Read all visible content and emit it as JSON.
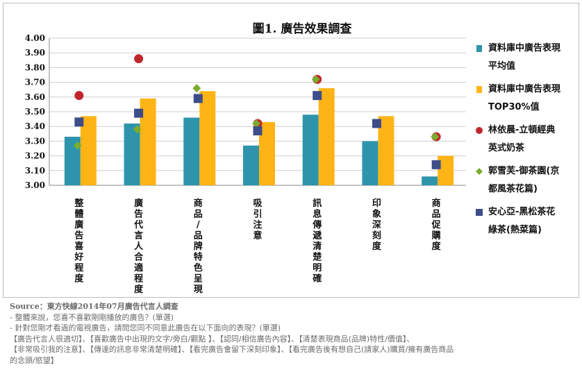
{
  "title": "圖1. 廣告效果調查",
  "chart_data": {
    "type": "bar",
    "title": "圖1. 廣告效果調查",
    "categories": [
      "整體廣告喜好程度",
      "廣告代言人合適程度",
      "商品/品牌特色呈現",
      "吸引注意",
      "訊息傳遞清楚明確",
      "印象深刻度",
      "商品促購度"
    ],
    "ylim": [
      3.0,
      4.0
    ],
    "yticks": [
      "3.00",
      "3.10",
      "3.20",
      "3.30",
      "3.40",
      "3.50",
      "3.60",
      "3.70",
      "3.80",
      "3.90",
      "4.00"
    ],
    "grid": true,
    "legend_position": "right",
    "bar_series": [
      {
        "name": "資料庫中廣告表現平均值",
        "color": "#2e94ab",
        "values": [
          3.33,
          3.42,
          3.46,
          3.27,
          3.48,
          3.3,
          3.06
        ]
      },
      {
        "name": "資料庫中廣告表現TOP30%值",
        "color": "#ffb416",
        "values": [
          3.47,
          3.59,
          3.64,
          3.43,
          3.66,
          3.47,
          3.2
        ]
      }
    ],
    "marker_series": [
      {
        "name": "林依晨-立頓經典英式奶茶",
        "color": "#c0272d",
        "shape": "circle",
        "values": [
          3.61,
          3.86,
          null,
          3.42,
          3.72,
          null,
          3.33
        ]
      },
      {
        "name": "郭雪芙-御茶園(京都風茶花篇)",
        "color": "#7aac2e",
        "shape": "diamond",
        "values": [
          3.27,
          3.38,
          3.66,
          3.42,
          3.72,
          null,
          3.33
        ]
      },
      {
        "name": "安心亞-黑松茶花綠茶(熱菜篇)",
        "color": "#3d4d8a",
        "shape": "square",
        "values": [
          3.43,
          3.49,
          3.59,
          3.37,
          3.61,
          3.42,
          3.14
        ]
      }
    ]
  },
  "legend": [
    {
      "lines": [
        "資料庫中廣告表現",
        "平均值"
      ],
      "color": "#2e94ab",
      "shape": "bar"
    },
    {
      "lines": [
        "資料庫中廣告表現",
        "TOP30%值"
      ],
      "color": "#ffb416",
      "shape": "bar"
    },
    {
      "lines": [
        "林依晨-立頓經典",
        "英式奶茶"
      ],
      "color": "#c0272d",
      "shape": "circle"
    },
    {
      "lines": [
        "郭雪芙-御茶園(京",
        "都風茶花篇)"
      ],
      "color": "#7aac2e",
      "shape": "diamond"
    },
    {
      "lines": [
        "安心亞-黑松茶花",
        "綠茶(熱菜篇)"
      ],
      "color": "#3d4d8a",
      "shape": "square"
    }
  ],
  "notes": {
    "source": "Source：東方快線2014年07月廣告代言人調查",
    "lines": [
      "- 整體來說，您喜不喜歡剛剛播放的廣告？(單選)",
      "- 針對您剛才看過的電視廣告，請問您同不同意此廣告在以下面向的表現？(單選)",
      "【廣告代言人很適切】、【喜歡廣告中出現的文字/旁白/觀點 】、【認同/相信廣告內容】、【清楚表現商品(品牌)特性/價值】、",
      "【非常吸引我的注意】、【傳達的訊息非常清楚明確】、【看完廣告會留下深刻印象】、【看完廣告後有想自己(請家人)購買/擁有廣告商品",
      "的念頭/慾望】"
    ]
  }
}
